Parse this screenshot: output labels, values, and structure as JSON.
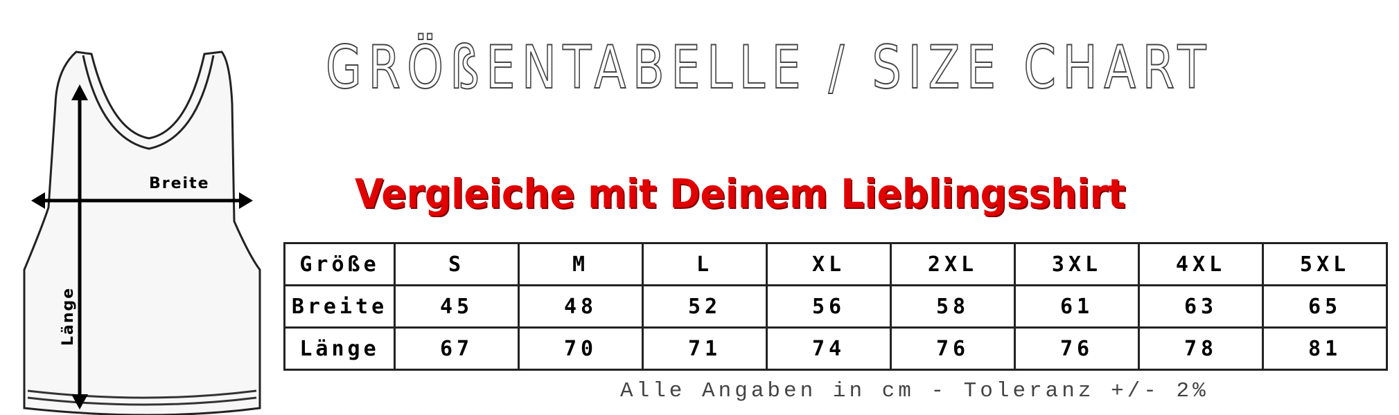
{
  "title": "GRÖßENTABELLE / SIZE CHART",
  "subtitle": "Vergleiche mit Deinem Lieblingsshirt",
  "illustration": {
    "width_label": "Breite",
    "length_label": "Länge"
  },
  "table": {
    "header_label": "Größe",
    "sizes": [
      "S",
      "M",
      "L",
      "XL",
      "2XL",
      "3XL",
      "4XL",
      "5XL"
    ],
    "rows": [
      {
        "label": "Breite",
        "values": [
          "45",
          "48",
          "52",
          "56",
          "58",
          "61",
          "63",
          "65"
        ]
      },
      {
        "label": "Länge",
        "values": [
          "67",
          "70",
          "71",
          "74",
          "76",
          "76",
          "78",
          "81"
        ]
      }
    ]
  },
  "note": "Alle Angaben in cm - Toleranz +/- 2%",
  "colors": {
    "subtitle": "#e00000",
    "title": "#444444"
  }
}
